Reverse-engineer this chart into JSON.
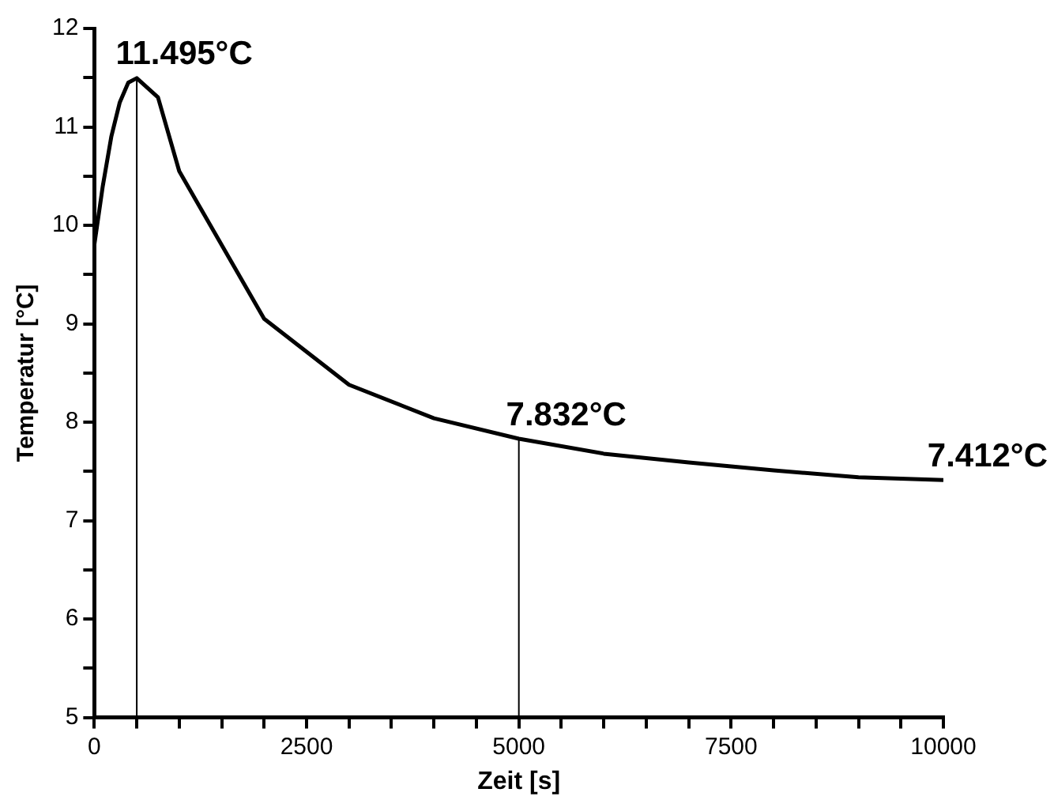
{
  "chart_data": {
    "type": "line",
    "xlabel": "Zeit [s]",
    "ylabel": "Temperatur [°C]",
    "x": [
      0,
      100,
      200,
      300,
      400,
      500,
      750,
      1000,
      2000,
      3000,
      4000,
      5000,
      6000,
      7000,
      8000,
      9000,
      10000
    ],
    "series": [
      {
        "color": "#000000",
        "values": [
          9.8,
          10.4,
          10.9,
          11.25,
          11.45,
          11.495,
          11.3,
          10.55,
          9.05,
          8.38,
          8.04,
          7.832,
          7.68,
          7.59,
          7.51,
          7.44,
          7.412
        ]
      }
    ],
    "xlim": [
      0,
      10000
    ],
    "ylim": [
      5,
      12
    ],
    "xticks": [
      0,
      {
        "value": 500,
        "label": null
      },
      {
        "value": 1000,
        "label": null
      },
      {
        "value": 1500,
        "label": null
      },
      {
        "value": 2000,
        "label": null
      },
      2500,
      {
        "value": 3000,
        "label": null
      },
      {
        "value": 3500,
        "label": null
      },
      {
        "value": 4000,
        "label": null
      },
      {
        "value": 4500,
        "label": null
      },
      5000,
      {
        "value": 5500,
        "label": null
      },
      {
        "value": 6000,
        "label": null
      },
      {
        "value": 6500,
        "label": null
      },
      {
        "value": 7000,
        "label": null
      },
      7500,
      {
        "value": 8000,
        "label": null
      },
      {
        "value": 8500,
        "label": null
      },
      {
        "value": 9000,
        "label": null
      },
      {
        "value": 9500,
        "label": null
      },
      10000
    ],
    "yticks": [
      5,
      {
        "value": 5.5,
        "label": null
      },
      6,
      {
        "value": 6.5,
        "label": null
      },
      7,
      {
        "value": 7.5,
        "label": null
      },
      8,
      {
        "value": 8.5,
        "label": null
      },
      9,
      {
        "value": 9.5,
        "label": null
      },
      10,
      {
        "value": 10.5,
        "label": null
      },
      11,
      {
        "value": 11.5,
        "label": null
      },
      12
    ],
    "ref_lines": [
      {
        "axis": "x",
        "value": 500,
        "color": "#000000"
      },
      {
        "axis": "x",
        "value": 5000,
        "color": "#000000"
      }
    ],
    "annotations": [
      {
        "text": "11.495°C",
        "x": 500,
        "y": 11.495
      },
      {
        "text": "7.832°C",
        "x": 5000,
        "y": 7.832
      },
      {
        "text": "7.412°C",
        "x": 10000,
        "y": 7.412
      }
    ],
    "grid": false,
    "legend": false,
    "marker": "none",
    "line_style": "solid"
  }
}
